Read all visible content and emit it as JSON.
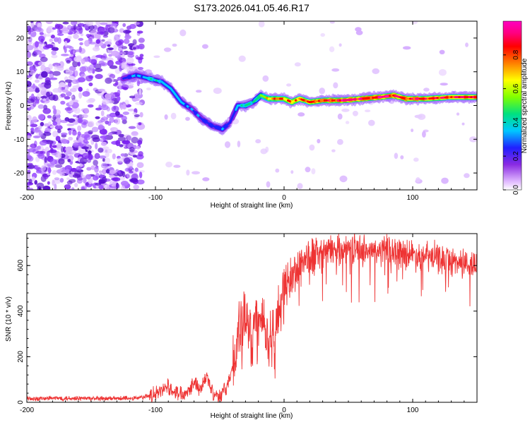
{
  "page": {
    "title": "S173.2026.041.05.46.R17"
  },
  "chart_data": [
    {
      "type": "heatmap",
      "title": "S173.2026.041.05.46.R17",
      "xlabel": "Height of straight line (km)",
      "ylabel": "Frequency (Hz)",
      "xlim": [
        -200,
        150
      ],
      "ylim": [
        -25,
        25
      ],
      "xticks": [
        {
          "value": -200,
          "label": "-200"
        },
        {
          "value": -100,
          "label": "-100"
        },
        {
          "value": 0,
          "label": "0"
        },
        {
          "value": 100,
          "label": "100"
        }
      ],
      "yticks": [
        {
          "value": -20,
          "label": "-20"
        },
        {
          "value": -10,
          "label": "-10"
        },
        {
          "value": 0,
          "label": "0"
        },
        {
          "value": 10,
          "label": "10"
        },
        {
          "value": 20,
          "label": "20"
        }
      ],
      "colorbar": {
        "label": "Normalized spectral amplitude",
        "range": [
          0,
          1
        ],
        "ticks": [
          {
            "value": 0.0,
            "label": "0.0"
          },
          {
            "value": 0.2,
            "label": "0.2"
          },
          {
            "value": 0.4,
            "label": "0.4"
          },
          {
            "value": 0.6,
            "label": "0.6"
          },
          {
            "value": 0.8,
            "label": "0.8"
          }
        ],
        "colormap": [
          "#ffffff",
          "#e0b8ff",
          "#8a2be2",
          "#2020ff",
          "#00c8ff",
          "#00e080",
          "#80ff00",
          "#ffff00",
          "#ff8000",
          "#ff0000",
          "#ff0080",
          "#ff00c0"
        ]
      },
      "ridge": {
        "x": [
          -125,
          -115,
          -105,
          -95,
          -88,
          -80,
          -72,
          -64,
          -56,
          -48,
          -42,
          -36,
          -30,
          -24,
          -18,
          -12,
          -6,
          0,
          6,
          12,
          20,
          30,
          45,
          60,
          75,
          85,
          95,
          110,
          130,
          150
        ],
        "freq": [
          8,
          9,
          8,
          7,
          5,
          1,
          -1,
          -4,
          -6,
          -7,
          -5,
          0,
          0,
          1,
          3,
          2,
          2,
          2,
          1,
          2,
          1,
          1.5,
          1.5,
          2,
          2.5,
          3,
          2,
          2,
          2.5,
          2.5
        ],
        "amplitude": [
          0.25,
          0.35,
          0.4,
          0.38,
          0.35,
          0.35,
          0.32,
          0.3,
          0.3,
          0.32,
          0.28,
          0.35,
          0.45,
          0.4,
          0.55,
          0.7,
          0.75,
          0.75,
          0.75,
          0.75,
          0.8,
          0.85,
          0.9,
          0.9,
          0.9,
          0.9,
          0.88,
          0.85,
          0.85,
          0.85
        ]
      }
    },
    {
      "type": "line",
      "xlabel": "Height of straight line (km)",
      "ylabel": "SNR (10 * v/v)",
      "xlim": [
        -200,
        150
      ],
      "ylim": [
        0,
        740
      ],
      "xticks": [
        {
          "value": -200,
          "label": "-200"
        },
        {
          "value": -100,
          "label": "-100"
        },
        {
          "value": 0,
          "label": "0"
        },
        {
          "value": 100,
          "label": "100"
        }
      ],
      "yticks": [
        {
          "value": 0,
          "label": "0"
        },
        {
          "value": 200,
          "label": "200"
        },
        {
          "value": 400,
          "label": "400"
        },
        {
          "value": 600,
          "label": "600"
        }
      ],
      "series": [
        {
          "name": "SNR",
          "color": "#ee3333",
          "x": [
            -200,
            -180,
            -160,
            -140,
            -120,
            -110,
            -100,
            -95,
            -90,
            -85,
            -80,
            -75,
            -70,
            -65,
            -60,
            -55,
            -50,
            -45,
            -40,
            -35,
            -30,
            -27,
            -25,
            -22,
            -20,
            -17,
            -15,
            -12,
            -10,
            -7,
            -5,
            -2,
            0,
            5,
            10,
            15,
            20,
            25,
            30,
            40,
            50,
            60,
            70,
            80,
            90,
            100,
            110,
            120,
            130,
            140,
            150
          ],
          "y": [
            15,
            18,
            18,
            15,
            18,
            22,
            35,
            50,
            70,
            45,
            40,
            50,
            90,
            60,
            110,
            40,
            30,
            60,
            150,
            300,
            350,
            330,
            260,
            400,
            330,
            380,
            350,
            250,
            310,
            270,
            380,
            460,
            500,
            540,
            580,
            630,
            620,
            650,
            660,
            670,
            680,
            670,
            660,
            670,
            660,
            650,
            640,
            630,
            620,
            610,
            600
          ]
        }
      ]
    }
  ]
}
